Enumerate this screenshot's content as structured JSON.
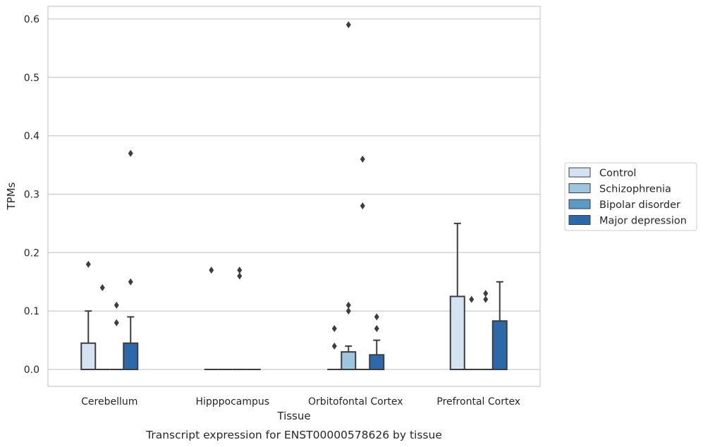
{
  "chart_data": {
    "type": "box",
    "title": "",
    "caption": "Transcript expression for ENST00000578626 by tissue",
    "xlabel": "Tissue",
    "ylabel": "TPMs",
    "ylim": [
      -0.028,
      0.62
    ],
    "yticks": [
      0.0,
      0.1,
      0.2,
      0.3,
      0.4,
      0.5,
      0.6
    ],
    "ytick_labels": [
      "0.0",
      "0.1",
      "0.2",
      "0.3",
      "0.4",
      "0.5",
      "0.6"
    ],
    "grid": "horizontal",
    "legend_position": "right",
    "categories": [
      "Cerebellum",
      "Hipppocampus",
      "Orbitofontal Cortex",
      "Prefrontal Cortex"
    ],
    "series": [
      {
        "name": "Control",
        "color": "#d3e3f2",
        "boxes": [
          {
            "q1": 0,
            "median": 0,
            "q3": 0.045,
            "whisker_low": 0,
            "whisker_high": 0.1,
            "outliers": [
              0.18
            ]
          },
          {
            "q1": 0,
            "median": 0,
            "q3": 0,
            "whisker_low": 0,
            "whisker_high": 0,
            "outliers": [
              0.17
            ]
          },
          {
            "q1": 0,
            "median": 0,
            "q3": 0,
            "whisker_low": 0,
            "whisker_high": 0,
            "outliers": [
              0.04,
              0.07
            ]
          },
          {
            "q1": 0,
            "median": 0,
            "q3": 0.125,
            "whisker_low": 0,
            "whisker_high": 0.25,
            "outliers": []
          }
        ]
      },
      {
        "name": "Schizophrenia",
        "color": "#9dc6e0",
        "boxes": [
          {
            "q1": 0,
            "median": 0,
            "q3": 0,
            "whisker_low": 0,
            "whisker_high": 0,
            "outliers": [
              0.14
            ]
          },
          {
            "q1": 0,
            "median": 0,
            "q3": 0,
            "whisker_low": 0,
            "whisker_high": 0,
            "outliers": []
          },
          {
            "q1": 0,
            "median": 0,
            "q3": 0.03,
            "whisker_low": 0,
            "whisker_high": 0.04,
            "outliers": [
              0.1,
              0.11,
              0.59
            ]
          },
          {
            "q1": 0,
            "median": 0,
            "q3": 0,
            "whisker_low": 0,
            "whisker_high": 0,
            "outliers": [
              0.12
            ]
          }
        ]
      },
      {
        "name": "Bipolar disorder",
        "color": "#5b9ac8",
        "boxes": [
          {
            "q1": 0,
            "median": 0,
            "q3": 0,
            "whisker_low": 0,
            "whisker_high": 0,
            "outliers": [
              0.08,
              0.11
            ]
          },
          {
            "q1": 0,
            "median": 0,
            "q3": 0,
            "whisker_low": 0,
            "whisker_high": 0,
            "outliers": [
              0.16,
              0.17
            ]
          },
          {
            "q1": 0,
            "median": 0,
            "q3": 0,
            "whisker_low": 0,
            "whisker_high": 0,
            "outliers": [
              0.28,
              0.36
            ]
          },
          {
            "q1": 0,
            "median": 0,
            "q3": 0,
            "whisker_low": 0,
            "whisker_high": 0,
            "outliers": [
              0.12,
              0.13
            ]
          }
        ]
      },
      {
        "name": "Major depression",
        "color": "#2a6aaa",
        "boxes": [
          {
            "q1": 0,
            "median": 0,
            "q3": 0.045,
            "whisker_low": 0,
            "whisker_high": 0.09,
            "outliers": [
              0.15,
              0.37
            ]
          },
          {
            "q1": 0,
            "median": 0,
            "q3": 0,
            "whisker_low": 0,
            "whisker_high": 0,
            "outliers": []
          },
          {
            "q1": 0,
            "median": 0,
            "q3": 0.025,
            "whisker_low": 0,
            "whisker_high": 0.05,
            "outliers": [
              0.07,
              0.09
            ]
          },
          {
            "q1": 0,
            "median": 0,
            "q3": 0.083,
            "whisker_low": 0,
            "whisker_high": 0.15,
            "outliers": []
          }
        ]
      }
    ]
  }
}
